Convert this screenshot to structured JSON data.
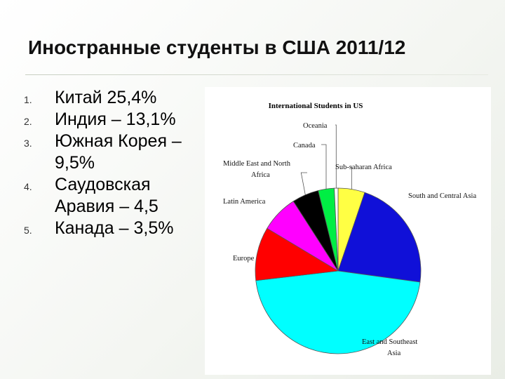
{
  "slide": {
    "title": "Иностранные студенты в США 2011/12",
    "list": [
      {
        "num": "1.",
        "text": "Китай 25,4%"
      },
      {
        "num": "2.",
        "text": "Индия – 13,1%"
      },
      {
        "num": "3.",
        "text": "Южная Корея – 9,5%"
      },
      {
        "num": "4.",
        "text": "Саудовская Аравия – 4,5"
      },
      {
        "num": "5.",
        "text": "Канада – 3,5%"
      }
    ]
  },
  "chart_data": {
    "type": "pie",
    "title": "International Students in US",
    "slices": [
      {
        "label": "Sub-saharan Africa",
        "value": 5,
        "color": "#ffff44"
      },
      {
        "label": "South and Central Asia",
        "value": 21,
        "color": "#1010d8"
      },
      {
        "label": "East and Southeast Asia",
        "value": 44,
        "color": "#00ffff"
      },
      {
        "label": "Europe",
        "value": 10,
        "color": "#ff0000"
      },
      {
        "label": "Latin America",
        "value": 7,
        "color": "#ff00ff"
      },
      {
        "label": "Middle East and North Africa",
        "value": 5,
        "color": "#000000"
      },
      {
        "label": "Canada",
        "value": 3,
        "color": "#00ee44"
      },
      {
        "label": "Oceania",
        "value": 0.7,
        "color": "#ffffff"
      }
    ]
  }
}
